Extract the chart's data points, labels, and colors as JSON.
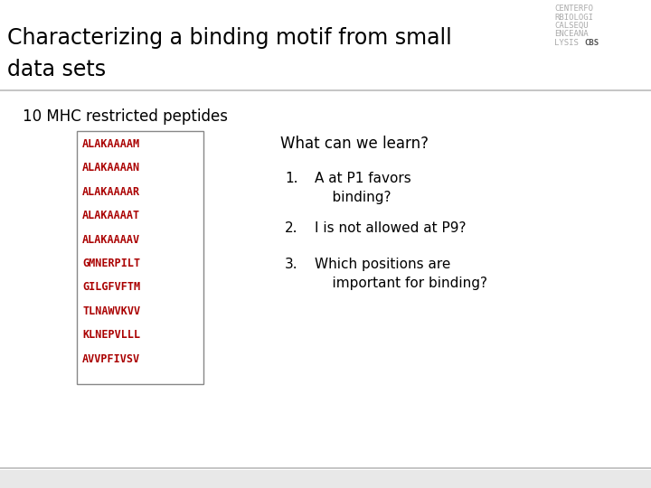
{
  "title_line1": "Characterizing a binding motif from small",
  "title_line2": "data sets",
  "title_fontsize": 17,
  "title_color": "#000000",
  "bg_color": "#e8e8e8",
  "header_bg": "#ffffff",
  "header_line_color": "#bbbbbb",
  "bottom_line_color": "#bbbbbb",
  "section_label": "10 MHC restricted peptides",
  "section_label_fontsize": 12,
  "peptides": [
    "ALAKAAAAM",
    "ALAKAAAAN",
    "ALAKAAAAR",
    "ALAKAAAAT",
    "ALAKAAAAV",
    "GMNERPILT",
    "GILGFVFTM",
    "TLNAWVKVV",
    "KLNEPVLLL",
    "AVVPFIVSV"
  ],
  "peptide_color": "#aa0000",
  "peptide_fontsize": 8.5,
  "what_can_title": "What can we learn?",
  "what_can_fontsize": 12,
  "points": [
    "A at P1 favors\n    binding?",
    "I is not allowed at P9?",
    "Which positions are\n    important for binding?"
  ],
  "points_fontsize": 11,
  "logo_lines": [
    "CENTERFO",
    "RBIOLOGI",
    "CALSEQU",
    "ENCEANA",
    "LYSIS "
  ],
  "logo_bold": "CBS",
  "logo_fontsize": 6.5,
  "logo_color_light": "#aaaaaa",
  "logo_color_bold": "#555555"
}
